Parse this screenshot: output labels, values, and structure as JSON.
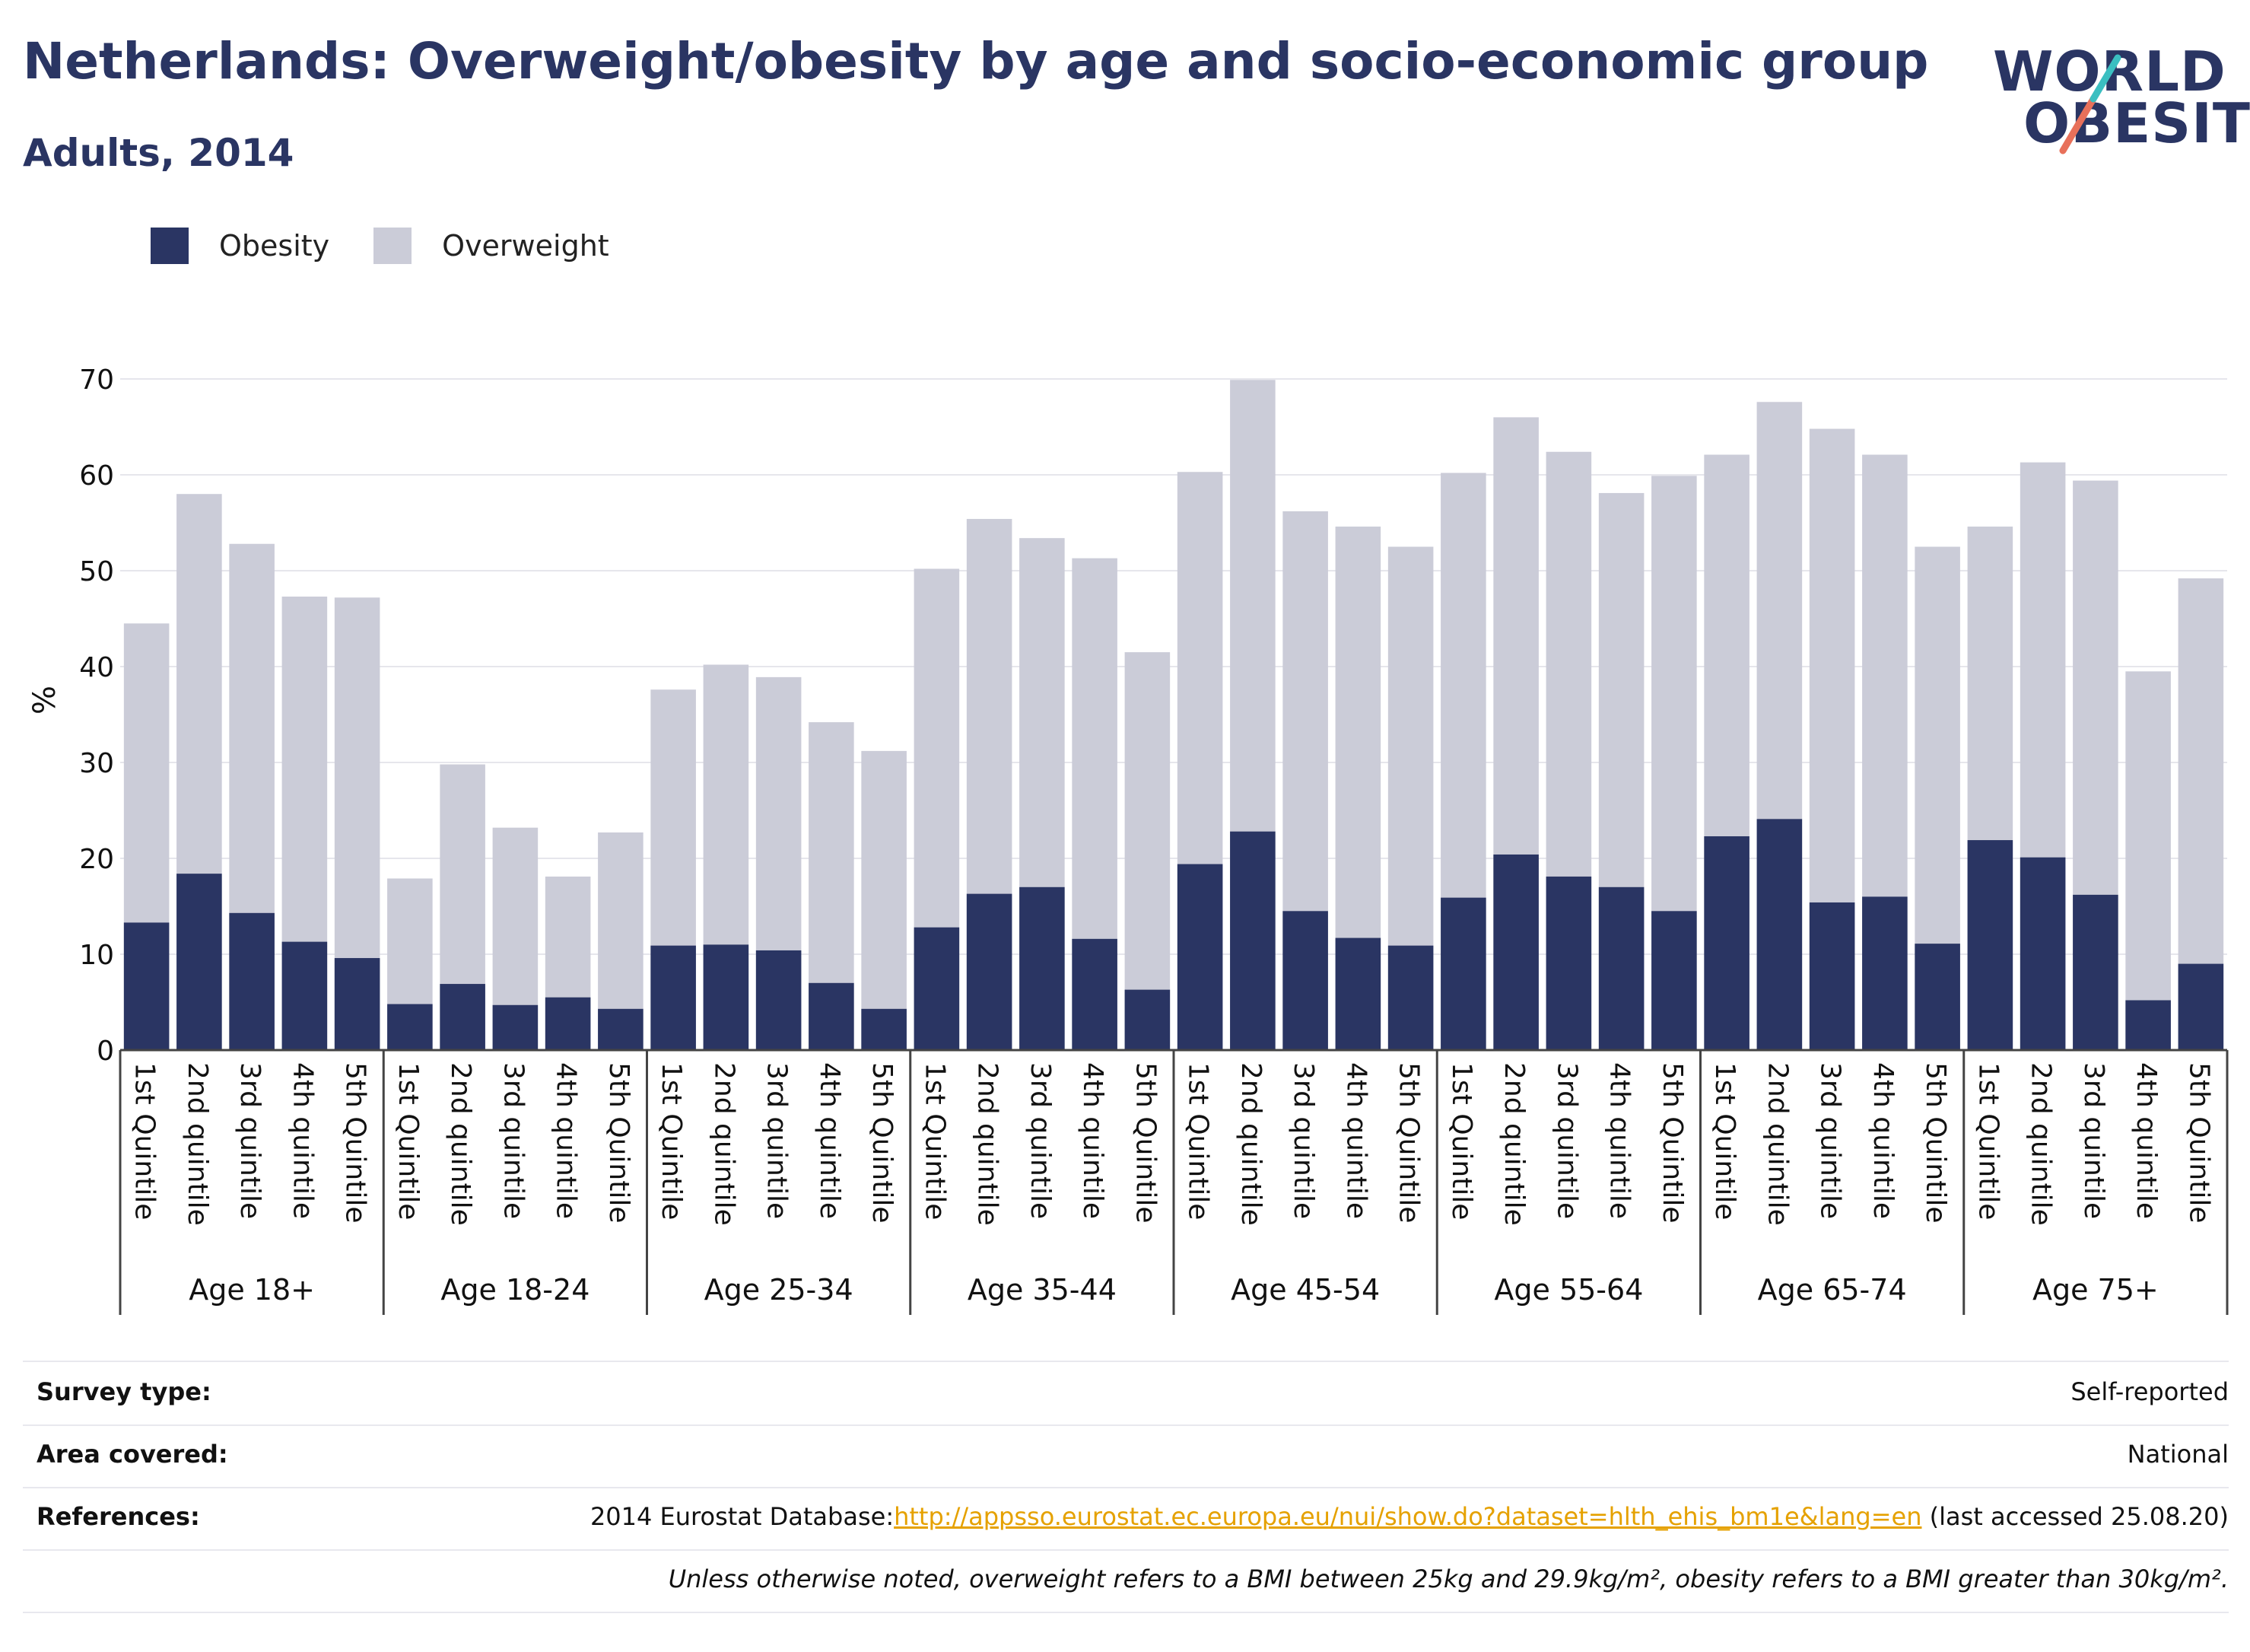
{
  "header": {
    "title": "Netherlands: Overweight/obesity by age and socio-economic group",
    "subtitle": "Adults, 2014"
  },
  "logo": {
    "line1": "WORLD",
    "line2": "OBESITY"
  },
  "legend": {
    "items": [
      {
        "label": "Obesity",
        "color": "#2a3563"
      },
      {
        "label": "Overweight",
        "color": "#cbccd8"
      }
    ]
  },
  "chart_data": {
    "type": "bar",
    "stacked": false,
    "ylabel": "%",
    "ylim": [
      0,
      70
    ],
    "yticks": [
      0,
      10,
      20,
      30,
      40,
      50,
      60,
      70
    ],
    "grid": true,
    "legend_position": "top-left",
    "groups": [
      {
        "label": "Age 18+",
        "categories": [
          "1st Quintile",
          "2nd quintile",
          "3rd quintile",
          "4th quintile",
          "5th Quintile"
        ],
        "overweight": [
          44.5,
          58.0,
          52.8,
          47.3,
          47.2
        ],
        "obesity": [
          13.3,
          18.4,
          14.3,
          11.3,
          9.6
        ]
      },
      {
        "label": "Age 18-24",
        "categories": [
          "1st Quintile",
          "2nd quintile",
          "3rd quintile",
          "4th quintile",
          "5th Quintile"
        ],
        "overweight": [
          17.9,
          29.8,
          23.2,
          18.1,
          22.7
        ],
        "obesity": [
          4.8,
          6.9,
          4.7,
          5.5,
          4.3
        ]
      },
      {
        "label": "Age 25-34",
        "categories": [
          "1st Quintile",
          "2nd quintile",
          "3rd quintile",
          "4th quintile",
          "5th Quintile"
        ],
        "overweight": [
          37.6,
          40.2,
          38.9,
          34.2,
          31.2
        ],
        "obesity": [
          10.9,
          11.0,
          10.4,
          7.0,
          4.3
        ]
      },
      {
        "label": "Age 35-44",
        "categories": [
          "1st Quintile",
          "2nd quintile",
          "3rd quintile",
          "4th quintile",
          "5th Quintile"
        ],
        "overweight": [
          50.2,
          55.4,
          53.4,
          51.3,
          41.5
        ],
        "obesity": [
          12.8,
          16.3,
          17.0,
          11.6,
          6.3
        ]
      },
      {
        "label": "Age 45-54",
        "categories": [
          "1st Quintile",
          "2nd quintile",
          "3rd quintile",
          "4th quintile",
          "5th Quintile"
        ],
        "overweight": [
          60.3,
          69.9,
          56.2,
          54.6,
          52.5
        ],
        "obesity": [
          19.4,
          22.8,
          14.5,
          11.7,
          10.9
        ]
      },
      {
        "label": "Age 55-64",
        "categories": [
          "1st Quintile",
          "2nd quintile",
          "3rd quintile",
          "4th quintile",
          "5th Quintile"
        ],
        "overweight": [
          60.2,
          66.0,
          62.4,
          58.1,
          59.9
        ],
        "obesity": [
          15.9,
          20.4,
          18.1,
          17.0,
          14.5
        ]
      },
      {
        "label": "Age 65-74",
        "categories": [
          "1st Quintile",
          "2nd quintile",
          "3rd quintile",
          "4th quintile",
          "5th Quintile"
        ],
        "overweight": [
          62.1,
          67.6,
          64.8,
          62.1,
          52.5
        ],
        "obesity": [
          22.3,
          24.1,
          15.4,
          16.0,
          11.1
        ]
      },
      {
        "label": "Age 75+",
        "categories": [
          "1st Quintile",
          "2nd quintile",
          "3rd quintile",
          "4th quintile",
          "5th Quintile"
        ],
        "overweight": [
          54.6,
          61.3,
          59.4,
          39.5,
          49.2
        ],
        "obesity": [
          21.9,
          20.1,
          16.2,
          5.2,
          9.0
        ]
      }
    ],
    "colors": {
      "obesity": "#2a3563",
      "overweight": "#cbccd8"
    }
  },
  "info": {
    "survey_type": {
      "key": "Survey type:",
      "value": "Self-reported"
    },
    "area_covered": {
      "key": "Area covered:",
      "value": "National"
    },
    "references": {
      "key": "References:",
      "prefix": "2014 Eurostat Database:",
      "link": "http://appsso.eurostat.ec.europa.eu/nui/show.do?dataset=hlth_ehis_bm1e&lang=en",
      "suffix": " (last accessed 25.08.20)"
    },
    "note": "Unless otherwise noted, overweight refers to a BMI between 25kg and 29.9kg/m², obesity refers to a BMI greater than 30kg/m²."
  }
}
